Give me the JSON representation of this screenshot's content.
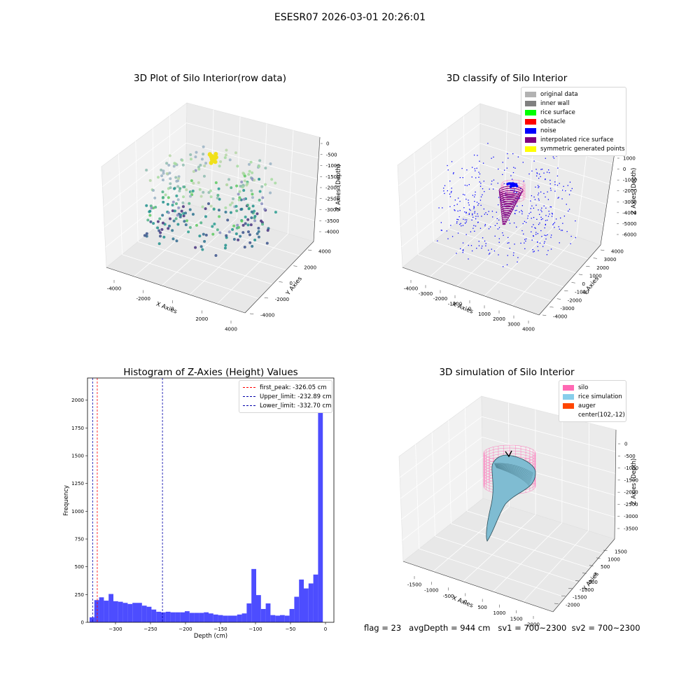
{
  "figure": {
    "title": "ESESR07 2026-03-01 20:26:01"
  },
  "chart_data": [
    {
      "type": "scatter",
      "title": "3D Plot of Silo Interior(row data)",
      "xlabel": "X Axies",
      "ylabel": "Y Axies",
      "zlabel": "Z Axies (Depth)",
      "x_ticks": [
        "-4000",
        "-2000",
        "0",
        "2000",
        "4000"
      ],
      "y_ticks": [
        "-4000",
        "-2000",
        "0",
        "2000",
        "4000"
      ],
      "z_ticks": [
        "0",
        "-500",
        "-1000",
        "-1500",
        "-2000",
        "-2500",
        "-3000",
        "-3500",
        "-4000"
      ],
      "colormap": "viridis",
      "highlight_color": "#f0e01a"
    },
    {
      "type": "scatter",
      "title": "3D classify of Silo Interior",
      "xlabel": "X Axies",
      "ylabel": "Y Axies",
      "zlabel": "Z Axies (Depth)",
      "x_ticks": [
        "-4000",
        "-3000",
        "-2000",
        "-1000",
        "0",
        "1000",
        "2000",
        "3000",
        "4000"
      ],
      "y_ticks": [
        "-4000",
        "-3000",
        "-2000",
        "-1000",
        "0",
        "1000",
        "2000",
        "3000",
        "4000"
      ],
      "z_ticks": [
        "1000",
        "0",
        "-1000",
        "-2000",
        "-3000",
        "-4000",
        "-5000",
        "-6000"
      ],
      "legend": [
        {
          "label": "original data",
          "color": "#b2b2b2"
        },
        {
          "label": "inner wall",
          "color": "#808080"
        },
        {
          "label": "rice surface",
          "color": "#00ff00"
        },
        {
          "label": "obstacle",
          "color": "#ff0000"
        },
        {
          "label": "noise",
          "color": "#0000ff"
        },
        {
          "label": "interpolated rice surface",
          "color": "#800080"
        },
        {
          "label": "symmetric generated points",
          "color": "#ffff00"
        }
      ]
    },
    {
      "type": "bar",
      "title": "Histogram of Z-Axies (Height) Values",
      "xlabel": "Depth (cm)",
      "ylabel": "Frequency",
      "xlim": [
        -340,
        12
      ],
      "ylim": [
        0,
        2200
      ],
      "x_ticks": [
        -300,
        -250,
        -200,
        -150,
        -100,
        -50,
        0
      ],
      "y_ticks": [
        0,
        250,
        500,
        750,
        1000,
        1250,
        1500,
        1750,
        2000
      ],
      "bar_color": "#4d4dff",
      "bin_width": 6.8,
      "bins_start": -337,
      "values": [
        45,
        200,
        225,
        195,
        255,
        190,
        185,
        175,
        165,
        175,
        175,
        150,
        140,
        115,
        95,
        90,
        95,
        90,
        90,
        90,
        100,
        85,
        85,
        85,
        90,
        80,
        70,
        65,
        60,
        60,
        60,
        70,
        80,
        170,
        480,
        245,
        120,
        170,
        65,
        60,
        65,
        60,
        120,
        230,
        385,
        305,
        350,
        430,
        2080
      ],
      "vlines": [
        {
          "label": "first_peak: -326.05 cm",
          "x": -326.05,
          "color": "#ff0000"
        },
        {
          "label": "Upper_limit: -232.89 cm",
          "x": -232.89,
          "color": "#0000aa"
        },
        {
          "label": "Lower_limit: -332.70 cm",
          "x": -332.7,
          "color": "#0000aa"
        }
      ]
    },
    {
      "type": "area",
      "title": "3D simulation of Silo Interior",
      "xlabel": "X Axies",
      "ylabel": "Y Axies",
      "zlabel": "Z Axies (Depth)",
      "x_ticks": [
        "-1500",
        "-1000",
        "-500",
        "0",
        "500",
        "1000",
        "1500",
        "2000"
      ],
      "y_ticks": [
        "1500",
        "1000",
        "500",
        "0",
        "-500",
        "-1000",
        "-1500",
        "-2000"
      ],
      "z_ticks": [
        "0",
        "-500",
        "-1000",
        "-1500",
        "-2000",
        "-2500",
        "-3000",
        "-3500"
      ],
      "legend": [
        {
          "label": "silo",
          "color": "#ff69b4"
        },
        {
          "label": "rice simulation",
          "color": "#87ceeb"
        },
        {
          "label": "auger",
          "color": "#ff4500"
        },
        {
          "label": "center(102,-12)",
          "color": ""
        }
      ]
    }
  ],
  "footer": {
    "flag": "flag = 23",
    "avg": "avgDepth = 944 cm",
    "sv1": "sv1 = 700~2300",
    "sv2": "sv2 = 700~2300"
  }
}
